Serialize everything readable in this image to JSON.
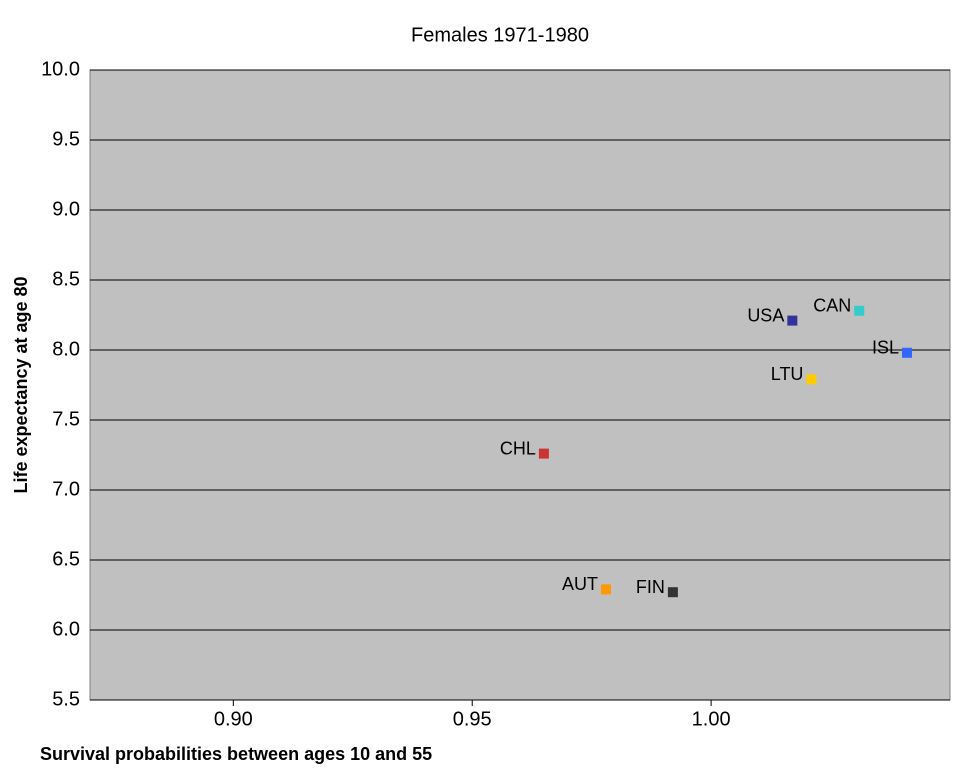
{
  "chart_data": {
    "type": "scatter",
    "title": "Females 1971-1980",
    "x_label": "Survival probabilities between ages 10 and 55",
    "y_label": "Life expectancy at age 80",
    "xlim": [
      0.87,
      1.05
    ],
    "ylim": [
      5.5,
      10.0
    ],
    "xticks": [
      {
        "value": 0.9,
        "label": "0.90"
      },
      {
        "value": 0.95,
        "label": "0.95"
      },
      {
        "value": 1.0,
        "label": "1.00"
      }
    ],
    "yticks": [
      {
        "value": 5.5,
        "label": "5.5"
      },
      {
        "value": 6.0,
        "label": "6.0"
      },
      {
        "value": 6.5,
        "label": "6.5"
      },
      {
        "value": 7.0,
        "label": "7.0"
      },
      {
        "value": 7.5,
        "label": "7.5"
      },
      {
        "value": 8.0,
        "label": "8.0"
      },
      {
        "value": 8.5,
        "label": "8.5"
      },
      {
        "value": 9.0,
        "label": "9.0"
      },
      {
        "value": 9.5,
        "label": "9.5"
      },
      {
        "value": 10.0,
        "label": "10.0"
      }
    ],
    "grid": true,
    "points": [
      {
        "name": "USA",
        "x": 1.017,
        "y": 8.21,
        "color": "#333399"
      },
      {
        "name": "CAN",
        "x": 1.031,
        "y": 8.28,
        "color": "#33cccc"
      },
      {
        "name": "ISL",
        "x": 1.041,
        "y": 7.98,
        "color": "#3366ff"
      },
      {
        "name": "LTU",
        "x": 1.021,
        "y": 7.79,
        "color": "#ffcc00"
      },
      {
        "name": "CHL",
        "x": 0.965,
        "y": 7.26,
        "color": "#cc3333"
      },
      {
        "name": "AUT",
        "x": 0.978,
        "y": 6.29,
        "color": "#ff9900"
      },
      {
        "name": "FIN",
        "x": 0.992,
        "y": 6.27,
        "color": "#333333"
      }
    ]
  }
}
